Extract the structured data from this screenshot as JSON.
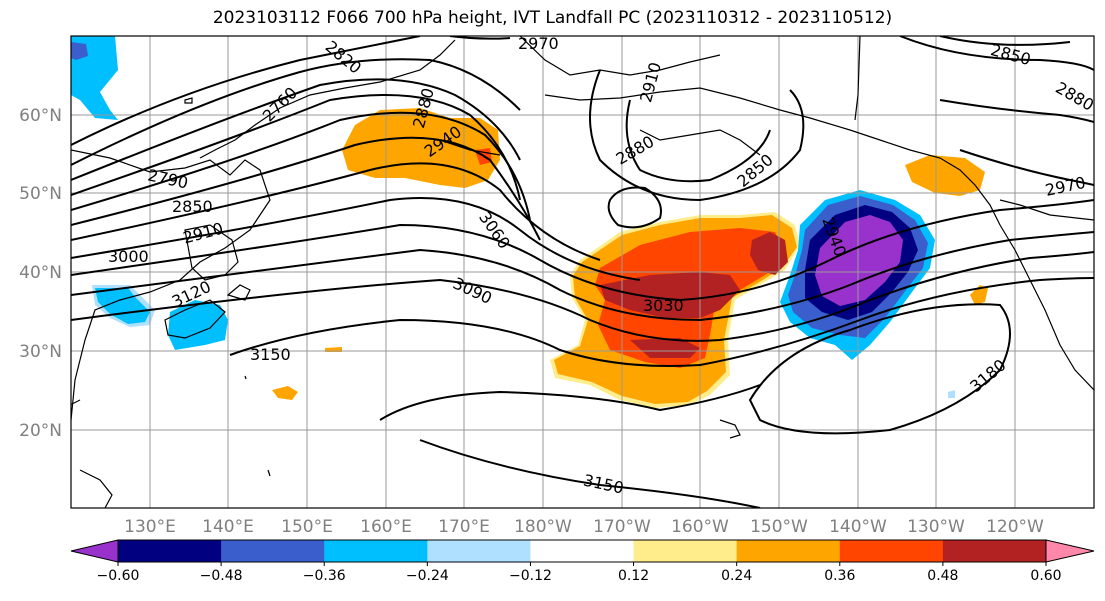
{
  "title": "2023103112 F066 700 hPa height, IVT Landfall PC (2023110312 - 2023110512)",
  "map": {
    "lat_labels": [
      "60°N",
      "50°N",
      "40°N",
      "30°N",
      "20°N"
    ],
    "lon_labels": [
      "130°E",
      "140°E",
      "150°E",
      "160°E",
      "170°E",
      "180°W",
      "170°W",
      "160°W",
      "150°W",
      "140°W",
      "130°W",
      "120°W"
    ],
    "contour_labels": [
      "2970",
      "2820",
      "2760",
      "2880",
      "2940",
      "2910",
      "2880",
      "2850",
      "2850",
      "2880",
      "2790",
      "2850",
      "2910",
      "3000",
      "3060",
      "2940",
      "2970",
      "3120",
      "3090",
      "3030",
      "3150",
      "3180",
      "3150"
    ]
  },
  "colorbar": {
    "ticks": [
      "−0.60",
      "−0.48",
      "−0.36",
      "−0.24",
      "−0.12",
      "0.12",
      "0.24",
      "0.36",
      "0.48",
      "0.60"
    ],
    "colors": [
      "#9932cc",
      "#000080",
      "#3a5fcd",
      "#00bfff",
      "#b0e0ff",
      "#ffffff",
      "#ffec8b",
      "#ffa500",
      "#ff4500",
      "#b22222",
      "#ff88aa"
    ]
  }
}
